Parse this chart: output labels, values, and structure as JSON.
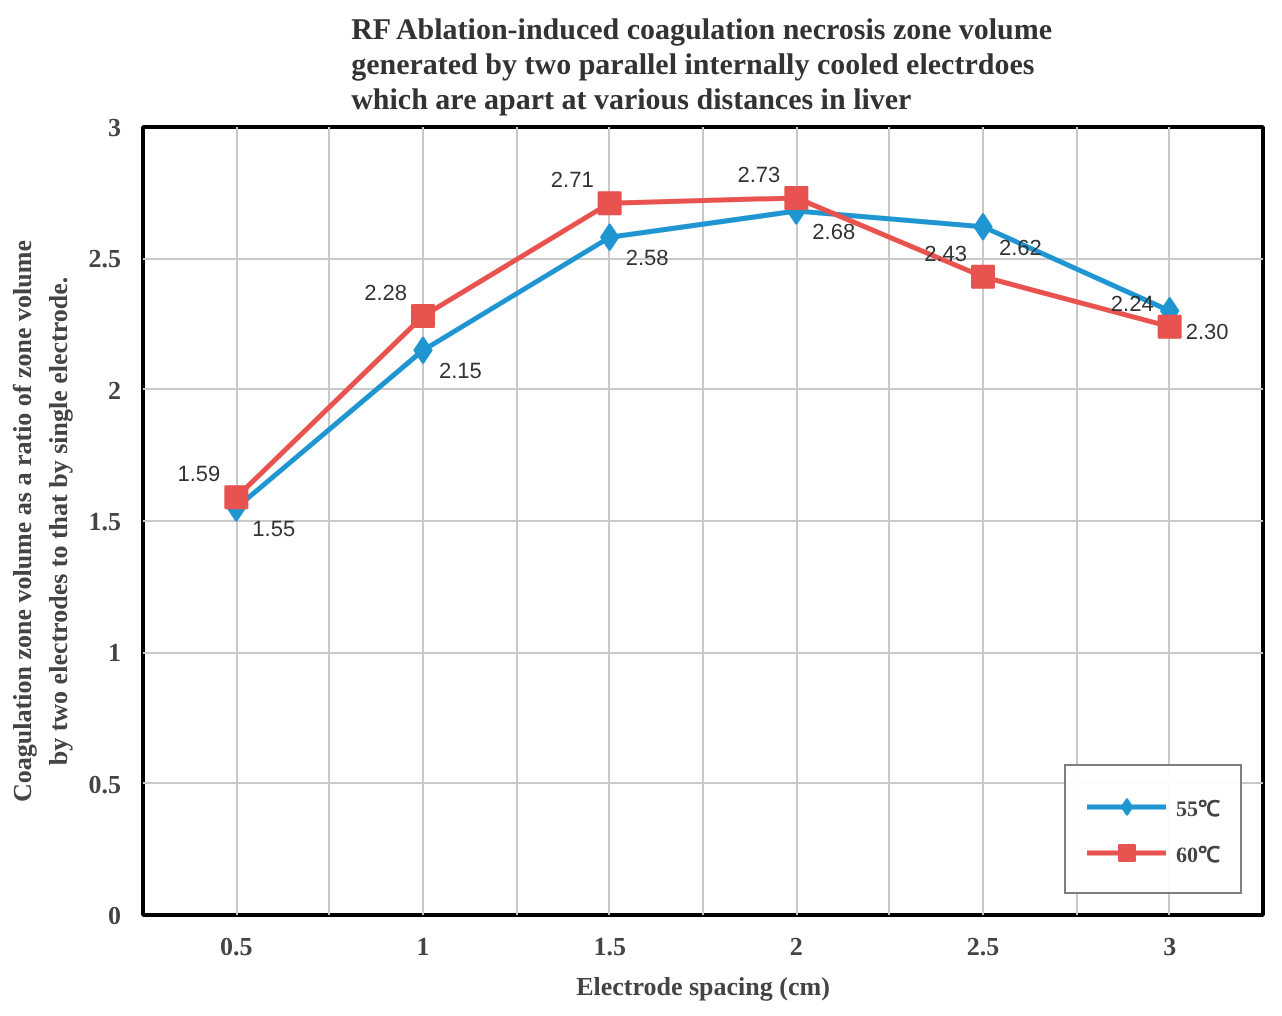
{
  "chart_data": {
    "type": "line",
    "title": "RF Ablation-induced coagulation necrosis zone volume generated by two parallel internally cooled electrdoes which are apart at various distances in liver",
    "xlabel": "Electrode spacing (cm)",
    "ylabel": "Coagulation zone volume as a ratio of zone volume by two electrodes to that by single electrode.",
    "x": [
      0.5,
      1,
      1.5,
      2,
      2.5,
      3
    ],
    "xlim": [
      0.25,
      3.25
    ],
    "xticks": [
      0.5,
      {
        "value": 0.75,
        "label": null
      },
      1,
      {
        "value": 1.25,
        "label": null
      },
      1.5,
      {
        "value": 1.75,
        "label": null
      },
      2,
      {
        "value": 2.25,
        "label": null
      },
      2.5,
      {
        "value": 2.75,
        "label": null
      },
      3
    ],
    "ylim": [
      0,
      3
    ],
    "yticks": [
      0,
      0.5,
      1,
      1.5,
      2,
      2.5,
      3
    ],
    "grid": true,
    "legend": "bottom right",
    "line_style": "solid",
    "series": [
      {
        "name": "55℃",
        "color": "#1f96d2",
        "marker": "diamond",
        "values": [
          1.55,
          2.15,
          2.58,
          2.68,
          2.62,
          2.3
        ],
        "value_labels": [
          "1.55",
          "2.15",
          "2.58",
          "2.68",
          "2.62",
          "2.30"
        ]
      },
      {
        "name": "60℃",
        "color": "#e8534f",
        "marker": "square",
        "values": [
          1.59,
          2.28,
          2.71,
          2.73,
          2.43,
          2.24
        ],
        "value_labels": [
          "1.59",
          "2.28",
          "2.71",
          "2.73",
          "2.43",
          "2.24"
        ]
      }
    ]
  }
}
